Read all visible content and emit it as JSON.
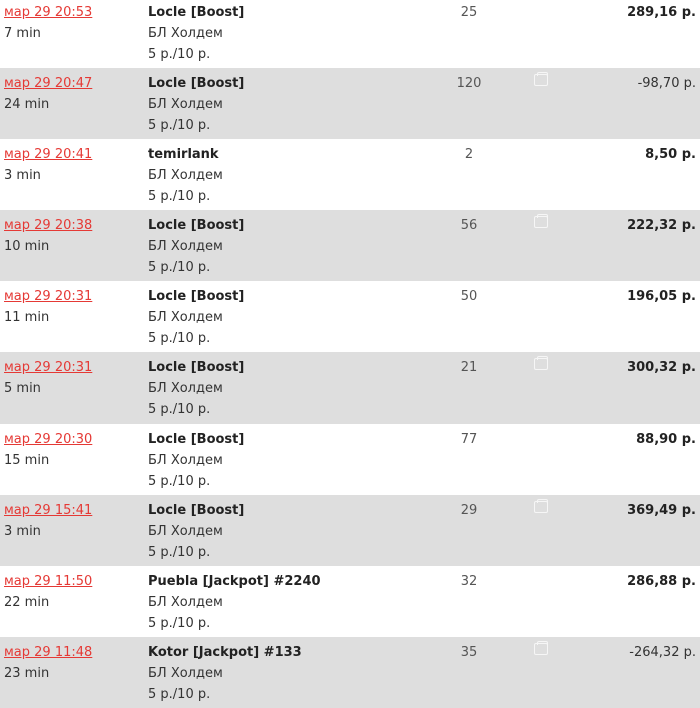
{
  "colors": {
    "link": "#e53935",
    "alt_row": "#dedede"
  },
  "rows": [
    {
      "date": "мар 29 20:53",
      "duration": "7 min",
      "name": "Locle [Boost]",
      "type": "БЛ Холдем",
      "stakes": "5 р./10 р.",
      "count": "25",
      "wallet": false,
      "amount": "289,16 р.",
      "positive": true
    },
    {
      "date": "мар 29 20:47",
      "duration": "24 min",
      "name": "Locle [Boost]",
      "type": "БЛ Холдем",
      "stakes": "5 р./10 р.",
      "count": "120",
      "wallet": true,
      "amount": "-98,70 р.",
      "positive": false
    },
    {
      "date": "мар 29 20:41",
      "duration": "3 min",
      "name": "temirlank",
      "type": "БЛ Холдем",
      "stakes": "5 р./10 р.",
      "count": "2",
      "wallet": false,
      "amount": "8,50 р.",
      "positive": true
    },
    {
      "date": "мар 29 20:38",
      "duration": "10 min",
      "name": "Locle [Boost]",
      "type": "БЛ Холдем",
      "stakes": "5 р./10 р.",
      "count": "56",
      "wallet": true,
      "amount": "222,32 р.",
      "positive": true
    },
    {
      "date": "мар 29 20:31",
      "duration": "11 min",
      "name": "Locle [Boost]",
      "type": "БЛ Холдем",
      "stakes": "5 р./10 р.",
      "count": "50",
      "wallet": false,
      "amount": "196,05 р.",
      "positive": true
    },
    {
      "date": "мар 29 20:31",
      "duration": "5 min",
      "name": "Locle [Boost]",
      "type": "БЛ Холдем",
      "stakes": "5 р./10 р.",
      "count": "21",
      "wallet": true,
      "amount": "300,32 р.",
      "positive": true
    },
    {
      "date": "мар 29 20:30",
      "duration": "15 min",
      "name": "Locle [Boost]",
      "type": "БЛ Холдем",
      "stakes": "5 р./10 р.",
      "count": "77",
      "wallet": false,
      "amount": "88,90 р.",
      "positive": true
    },
    {
      "date": "мар 29 15:41",
      "duration": "3 min",
      "name": "Locle [Boost]",
      "type": "БЛ Холдем",
      "stakes": "5 р./10 р.",
      "count": "29",
      "wallet": true,
      "amount": "369,49 р.",
      "positive": true
    },
    {
      "date": "мар 29 11:50",
      "duration": "22 min",
      "name": "Puebla [Jackpot] #2240",
      "type": "БЛ Холдем",
      "stakes": "5 р./10 р.",
      "count": "32",
      "wallet": false,
      "amount": "286,88 р.",
      "positive": true
    },
    {
      "date": "мар 29 11:48",
      "duration": "23 min",
      "name": "Kotor [Jackpot] #133",
      "type": "БЛ Холдем",
      "stakes": "5 р./10 р.",
      "count": "35",
      "wallet": true,
      "amount": "-264,32 р.",
      "positive": false
    }
  ]
}
